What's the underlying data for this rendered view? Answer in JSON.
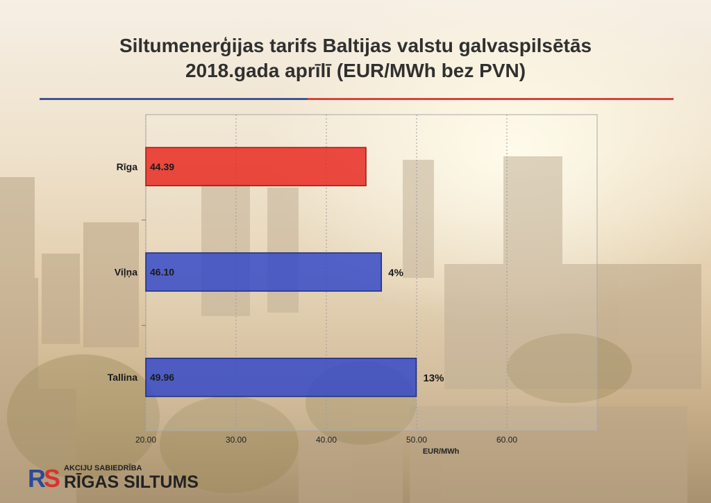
{
  "header": {
    "title_line1": "Siltumenerģijas tarifs Baltijas valstu galvaspilsētās",
    "title_line2": "2018.gada aprīlī (EUR/MWh bez PVN)"
  },
  "colors": {
    "riga": "#e8241c",
    "other": "#2f45c8",
    "rule_blue": "#3f5597",
    "rule_red": "#d8433f"
  },
  "logo": {
    "small_text": "AKCIJU SABIEDRĪBA",
    "big_text": "RĪGAS SILTUMS"
  },
  "chart_data": {
    "type": "bar",
    "orientation": "horizontal",
    "categories": [
      "Rīga",
      "Viļņa",
      "Tallina"
    ],
    "values": [
      44.39,
      46.1,
      49.96
    ],
    "value_labels": [
      "44.39",
      "46.10",
      "49.96"
    ],
    "annotations": [
      "",
      "4%",
      "13%"
    ],
    "xlabel": "EUR/MWh",
    "xlim": [
      20,
      70
    ],
    "xticks": [
      "20.00",
      "30.00",
      "40.00",
      "50.00",
      "60.00"
    ],
    "xtick_values": [
      20,
      30,
      40,
      50,
      60
    ],
    "grid": true
  }
}
